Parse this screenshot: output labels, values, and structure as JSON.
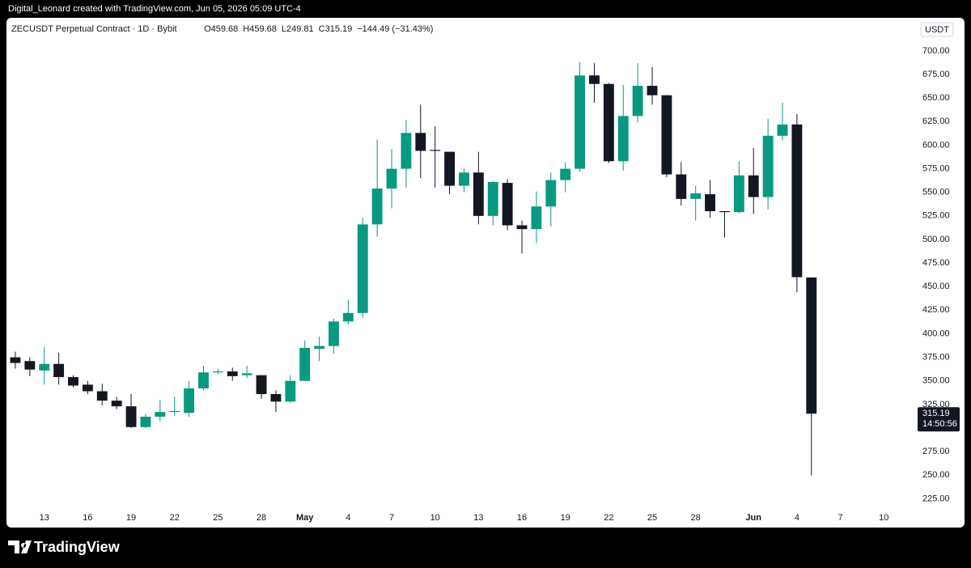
{
  "header": "Digital_Leonard created with TradingView.com, Jun 05, 2026 05:09 UTC-4",
  "footer": {
    "brand": "TradingView"
  },
  "chart_data": {
    "type": "candlestick",
    "title": "ZECUSDT Perpetual Contract · 1D · Bybit",
    "legend": [
      "O459.68",
      "H459.68",
      "L249.81",
      "C315.19",
      "−144.49 (−31.43%)"
    ],
    "currency": "USDT",
    "countdown": "14:50:56",
    "up_color": "#089981",
    "down_color": "#131722",
    "x": [
      "2026-04-11",
      "2026-04-12",
      "2026-04-13",
      "2026-04-14",
      "2026-04-15",
      "2026-04-16",
      "2026-04-17",
      "2026-04-18",
      "2026-04-19",
      "2026-04-20",
      "2026-04-21",
      "2026-04-22",
      "2026-04-23",
      "2026-04-24",
      "2026-04-25",
      "2026-04-26",
      "2026-04-27",
      "2026-04-28",
      "2026-04-29",
      "2026-04-30",
      "2026-05-01",
      "2026-05-02",
      "2026-05-03",
      "2026-05-04",
      "2026-05-05",
      "2026-05-06",
      "2026-05-07",
      "2026-05-08",
      "2026-05-09",
      "2026-05-10",
      "2026-05-11",
      "2026-05-12",
      "2026-05-13",
      "2026-05-14",
      "2026-05-15",
      "2026-05-16",
      "2026-05-17",
      "2026-05-18",
      "2026-05-19",
      "2026-05-20",
      "2026-05-21",
      "2026-05-22",
      "2026-05-23",
      "2026-05-24",
      "2026-05-25",
      "2026-05-26",
      "2026-05-27",
      "2026-05-28",
      "2026-05-29",
      "2026-05-30",
      "2026-05-31",
      "2026-06-01",
      "2026-06-02",
      "2026-06-03",
      "2026-06-04",
      "2026-06-05"
    ],
    "open": [
      375,
      371,
      361,
      368,
      354,
      346,
      339,
      329,
      323,
      301,
      312,
      317,
      316,
      342,
      359,
      360,
      356,
      356,
      336,
      328,
      350,
      384,
      387,
      413,
      422,
      516,
      554,
      575,
      613,
      595,
      593,
      557,
      571,
      525,
      560,
      515,
      511,
      535,
      563,
      575,
      674,
      665,
      583,
      631,
      663,
      653,
      569,
      543,
      548,
      530,
      529,
      568,
      545,
      610,
      622,
      459.68
    ],
    "high": [
      381,
      375,
      386,
      380,
      356,
      350,
      347,
      333,
      336,
      315,
      330,
      333,
      350,
      366,
      363,
      364,
      366,
      356,
      340,
      356,
      393,
      397,
      416,
      436,
      523,
      606,
      596,
      627,
      643,
      620,
      593,
      575,
      593,
      562,
      564,
      520,
      551,
      571,
      582,
      688,
      687,
      666,
      664,
      687,
      683,
      653,
      582,
      557,
      563,
      530,
      583,
      597,
      628,
      645,
      633,
      459.68
    ],
    "low": [
      363,
      355,
      346,
      346,
      343,
      336,
      324,
      320,
      300,
      300,
      307,
      313,
      312,
      340,
      357,
      350,
      353,
      331,
      317,
      327,
      350,
      371,
      379,
      410,
      417,
      503,
      533,
      555,
      565,
      555,
      548,
      550,
      516,
      515,
      510,
      485,
      496,
      514,
      550,
      572,
      645,
      581,
      573,
      624,
      643,
      566,
      536,
      520,
      523,
      502,
      528,
      527,
      532,
      605,
      444,
      249.81
    ],
    "close": [
      369,
      362,
      368,
      354,
      345,
      339,
      329,
      323,
      301,
      312,
      317,
      318,
      342,
      359,
      360,
      355,
      358,
      336,
      328,
      350,
      385,
      387,
      413,
      422,
      516,
      554,
      575,
      613,
      594,
      594,
      557,
      571,
      525,
      561,
      515,
      511,
      535,
      563,
      575,
      674,
      665,
      583,
      631,
      663,
      653,
      569,
      543,
      549,
      530,
      529,
      568,
      545,
      610,
      622,
      460,
      315.19
    ],
    "xlim": [
      "2026-04-10T12:00:00Z",
      "2026-06-12"
    ],
    "xticks": [
      {
        "value": "2026-04-13",
        "label": "13"
      },
      {
        "value": "2026-04-16",
        "label": "16"
      },
      {
        "value": "2026-04-19",
        "label": "19"
      },
      {
        "value": "2026-04-22",
        "label": "22"
      },
      {
        "value": "2026-04-25",
        "label": "25"
      },
      {
        "value": "2026-04-28",
        "label": "28"
      },
      {
        "value": "2026-05-01",
        "label": "May"
      },
      {
        "value": "2026-05-04",
        "label": "4"
      },
      {
        "value": "2026-05-07",
        "label": "7"
      },
      {
        "value": "2026-05-10",
        "label": "10"
      },
      {
        "value": "2026-05-13",
        "label": "13"
      },
      {
        "value": "2026-05-16",
        "label": "16"
      },
      {
        "value": "2026-05-19",
        "label": "19"
      },
      {
        "value": "2026-05-22",
        "label": "22"
      },
      {
        "value": "2026-05-25",
        "label": "25"
      },
      {
        "value": "2026-05-28",
        "label": "28"
      },
      {
        "value": "2026-06-01",
        "label": "Jun"
      },
      {
        "value": "2026-06-04",
        "label": "4"
      },
      {
        "value": "2026-06-07",
        "label": "7"
      },
      {
        "value": "2026-06-10",
        "label": "10"
      }
    ],
    "ylim": [
      215,
      730
    ],
    "yticks": [
      {
        "value": 225,
        "label": "225.00"
      },
      {
        "value": 250,
        "label": "250.00"
      },
      {
        "value": 275,
        "label": "275.00"
      },
      {
        "value": 300,
        "label": "300.00"
      },
      {
        "value": 325,
        "label": "325.00"
      },
      {
        "value": 350,
        "label": "350.00"
      },
      {
        "value": 375,
        "label": "375.00"
      },
      {
        "value": 400,
        "label": "400.00"
      },
      {
        "value": 425,
        "label": "425.00"
      },
      {
        "value": 450,
        "label": "450.00"
      },
      {
        "value": 475,
        "label": "475.00"
      },
      {
        "value": 500,
        "label": "500.00"
      },
      {
        "value": 525,
        "label": "525.00"
      },
      {
        "value": 550,
        "label": "550.00"
      },
      {
        "value": 575,
        "label": "575.00"
      },
      {
        "value": 600,
        "label": "600.00"
      },
      {
        "value": 625,
        "label": "625.00"
      },
      {
        "value": 650,
        "label": "650.00"
      },
      {
        "value": 675,
        "label": "675.00"
      },
      {
        "value": 700,
        "label": "700.00"
      }
    ]
  }
}
